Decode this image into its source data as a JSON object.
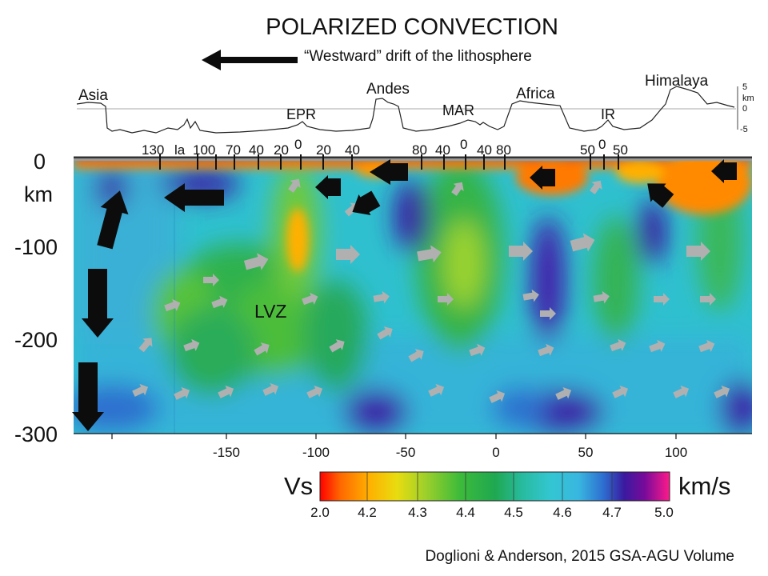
{
  "title": "POLARIZED CONVECTION",
  "subtitle": "“Westward” drift of the lithosphere",
  "credit": "Doglioni & Anderson, 2015 GSA-AGU Volume",
  "topo": {
    "labels": [
      "Asia",
      "EPR",
      "Andes",
      "MAR",
      "Africa",
      "IR",
      "Himalaya"
    ],
    "scale_label": "km",
    "scale_ticks": [
      "5",
      "0",
      "-5"
    ]
  },
  "ages": [
    "130",
    "la",
    "100",
    "70",
    "40",
    "20",
    "0",
    "20",
    "40",
    "80",
    "40",
    "0",
    "40",
    "80",
    "50",
    "0",
    "50"
  ],
  "depth": {
    "unit": "km",
    "ticks": [
      "0",
      "-100",
      "-200",
      "-300"
    ]
  },
  "lon_ticks": [
    "-150",
    "-100",
    "-50",
    "0",
    "50",
    "100"
  ],
  "lvz_label": "LVZ",
  "colorbar": {
    "left_label": "Vs",
    "right_label": "km/s",
    "ticks": [
      "2.0",
      "4.2",
      "4.3",
      "4.4",
      "4.5",
      "4.6",
      "4.7",
      "5.0"
    ],
    "colors": [
      "#ff0000",
      "#ff8c00",
      "#ffd400",
      "#9fd02a",
      "#2fb24a",
      "#33c3c3",
      "#2d7fd5",
      "#3a1aa0",
      "#ff1a8a"
    ]
  }
}
